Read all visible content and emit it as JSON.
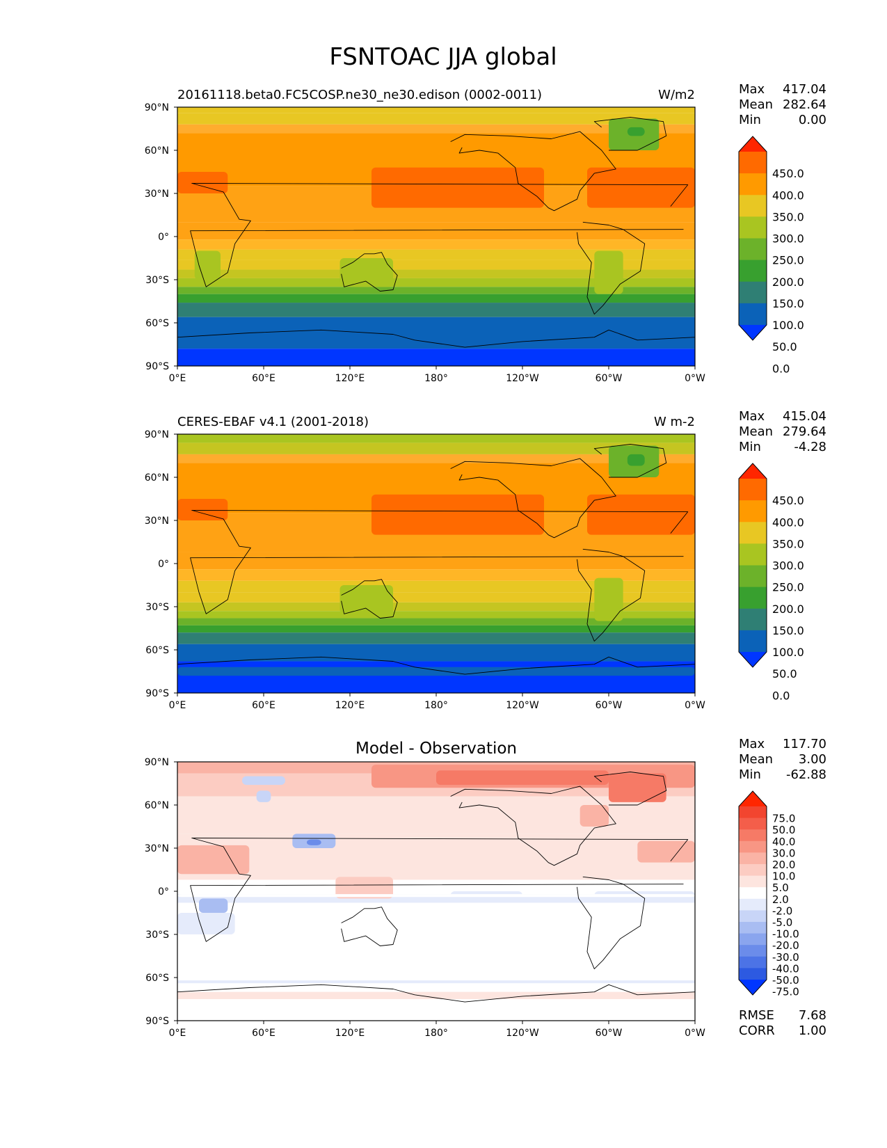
{
  "figure": {
    "title": "FSNTOAC JJA global"
  },
  "axes": {
    "x_ticks": [
      "0°E",
      "60°E",
      "120°E",
      "180°",
      "120°W",
      "60°W",
      "0°W"
    ],
    "y_ticks": [
      "90°N",
      "60°N",
      "30°N",
      "0°",
      "30°S",
      "60°S",
      "90°S"
    ]
  },
  "panels": [
    {
      "id": "model",
      "title_left": "20161118.beta0.FC5COSP.ne30_ne30.edison (0002-0011)",
      "title_center": "",
      "units": "W/m2",
      "stats": [
        {
          "label": "Max",
          "value": "417.04"
        },
        {
          "label": "Mean",
          "value": "282.64"
        },
        {
          "label": "Min",
          "value": "0.00"
        }
      ],
      "colorbar": {
        "labels": [
          "450.0",
          "400.0",
          "350.0",
          "300.0",
          "250.0",
          "200.0",
          "150.0",
          "100.0",
          "50.0",
          "0.0"
        ],
        "colors": [
          "#ff2600",
          "#ff6a00",
          "#ff9a00",
          "#e8c723",
          "#a9c521",
          "#6cb22a",
          "#38a02f",
          "#2f7f74",
          "#0b62b8",
          "#0036ff"
        ]
      },
      "bands": [
        {
          "lat_top": 90,
          "lat_bottom": 86,
          "color": "#e8c723"
        },
        {
          "lat_top": 86,
          "lat_bottom": 78,
          "color": "#e8c723"
        },
        {
          "lat_top": 78,
          "lat_bottom": 72,
          "color": "#ffac2e"
        },
        {
          "lat_top": 72,
          "lat_bottom": 35,
          "color": "#ff9a00"
        },
        {
          "lat_top": 35,
          "lat_bottom": 10,
          "color": "#ffa214"
        },
        {
          "lat_top": 10,
          "lat_bottom": -2,
          "color": "#ffa214"
        },
        {
          "lat_top": -2,
          "lat_bottom": -9,
          "color": "#ffb626"
        },
        {
          "lat_top": -9,
          "lat_bottom": -16,
          "color": "#e8c723"
        },
        {
          "lat_top": -16,
          "lat_bottom": -23,
          "color": "#e8c723"
        },
        {
          "lat_top": -23,
          "lat_bottom": -29,
          "color": "#c5c521"
        },
        {
          "lat_top": -29,
          "lat_bottom": -35,
          "color": "#a9c521"
        },
        {
          "lat_top": -35,
          "lat_bottom": -40,
          "color": "#6cb22a"
        },
        {
          "lat_top": -40,
          "lat_bottom": -46,
          "color": "#38a02f"
        },
        {
          "lat_top": -46,
          "lat_bottom": -56,
          "color": "#2f7f74"
        },
        {
          "lat_top": -56,
          "lat_bottom": -78,
          "color": "#0b62b8"
        },
        {
          "lat_top": -78,
          "lat_bottom": -90,
          "color": "#0036ff"
        }
      ],
      "patches": [
        {
          "lon0": 135,
          "lon1": 255,
          "lat0": 20,
          "lat1": 48,
          "color": "#ff6a00"
        },
        {
          "lon0": 285,
          "lon1": 360,
          "lat0": 20,
          "lat1": 48,
          "color": "#ff6a00"
        },
        {
          "lon0": 0,
          "lon1": 35,
          "lat0": 30,
          "lat1": 45,
          "color": "#ff6a00"
        },
        {
          "lon0": 300,
          "lon1": 335,
          "lat0": 60,
          "lat1": 82,
          "color": "#6cb22a"
        },
        {
          "lon0": 313,
          "lon1": 325,
          "lat0": 70,
          "lat1": 76,
          "color": "#38a02f"
        },
        {
          "lon0": 113,
          "lon1": 150,
          "lat0": -35,
          "lat1": -15,
          "color": "#a9c521"
        },
        {
          "lon0": 290,
          "lon1": 310,
          "lat0": -40,
          "lat1": -10,
          "color": "#a9c521"
        },
        {
          "lon0": 12,
          "lon1": 30,
          "lat0": -30,
          "lat1": -10,
          "color": "#a9c521"
        }
      ]
    },
    {
      "id": "obs",
      "title_left": "CERES-EBAF v4.1 (2001-2018)",
      "title_center": "",
      "units": "W m-2",
      "stats": [
        {
          "label": "Max",
          "value": "415.04"
        },
        {
          "label": "Mean",
          "value": "279.64"
        },
        {
          "label": "Min",
          "value": "-4.28"
        }
      ],
      "colorbar": {
        "labels": [
          "450.0",
          "400.0",
          "350.0",
          "300.0",
          "250.0",
          "200.0",
          "150.0",
          "100.0",
          "50.0",
          "0.0"
        ],
        "colors": [
          "#ff2600",
          "#ff6a00",
          "#ff9a00",
          "#e8c723",
          "#a9c521",
          "#6cb22a",
          "#38a02f",
          "#2f7f74",
          "#0b62b8",
          "#0036ff"
        ]
      },
      "bands": [
        {
          "lat_top": 90,
          "lat_bottom": 84,
          "color": "#a9c521"
        },
        {
          "lat_top": 84,
          "lat_bottom": 76,
          "color": "#c5c521"
        },
        {
          "lat_top": 76,
          "lat_bottom": 70,
          "color": "#ffac2e"
        },
        {
          "lat_top": 70,
          "lat_bottom": 35,
          "color": "#ff9a00"
        },
        {
          "lat_top": 35,
          "lat_bottom": 8,
          "color": "#ffa214"
        },
        {
          "lat_top": 8,
          "lat_bottom": -4,
          "color": "#ffa214"
        },
        {
          "lat_top": -4,
          "lat_bottom": -12,
          "color": "#ffb626"
        },
        {
          "lat_top": -12,
          "lat_bottom": -20,
          "color": "#e8c723"
        },
        {
          "lat_top": -20,
          "lat_bottom": -27,
          "color": "#e8c723"
        },
        {
          "lat_top": -27,
          "lat_bottom": -33,
          "color": "#c5c521"
        },
        {
          "lat_top": -33,
          "lat_bottom": -38,
          "color": "#a9c521"
        },
        {
          "lat_top": -38,
          "lat_bottom": -43,
          "color": "#6cb22a"
        },
        {
          "lat_top": -43,
          "lat_bottom": -48,
          "color": "#38a02f"
        },
        {
          "lat_top": -48,
          "lat_bottom": -56,
          "color": "#2f7f74"
        },
        {
          "lat_top": -56,
          "lat_bottom": -68,
          "color": "#0b62b8"
        },
        {
          "lat_top": -68,
          "lat_bottom": -90,
          "color": "#0036ff"
        }
      ],
      "patches": [
        {
          "lon0": 135,
          "lon1": 255,
          "lat0": 20,
          "lat1": 48,
          "color": "#ff6a00"
        },
        {
          "lon0": 285,
          "lon1": 360,
          "lat0": 20,
          "lat1": 48,
          "color": "#ff6a00"
        },
        {
          "lon0": 0,
          "lon1": 35,
          "lat0": 30,
          "lat1": 45,
          "color": "#ff6a00"
        },
        {
          "lon0": 300,
          "lon1": 335,
          "lat0": 60,
          "lat1": 82,
          "color": "#6cb22a"
        },
        {
          "lon0": 313,
          "lon1": 325,
          "lat0": 68,
          "lat1": 76,
          "color": "#38a02f"
        },
        {
          "lon0": 113,
          "lon1": 150,
          "lat0": -35,
          "lat1": -15,
          "color": "#a9c521"
        },
        {
          "lon0": 290,
          "lon1": 310,
          "lat0": -40,
          "lat1": -10,
          "color": "#a9c521"
        },
        {
          "lon0": 0,
          "lon1": 360,
          "lat0": -78,
          "lat1": -72,
          "color": "#0b62b8"
        }
      ]
    },
    {
      "id": "diff",
      "title_left": "",
      "title_center": "Model - Observation",
      "units": "",
      "stats": [
        {
          "label": "Max",
          "value": "117.70"
        },
        {
          "label": "Mean",
          "value": "3.00"
        },
        {
          "label": "Min",
          "value": "-62.88"
        }
      ],
      "colorbar": {
        "labels": [
          "75.0",
          "50.0",
          "40.0",
          "30.0",
          "20.0",
          "10.0",
          "5.0",
          "2.0",
          "-2.0",
          "-5.0",
          "-10.0",
          "-20.0",
          "-30.0",
          "-40.0",
          "-50.0",
          "-75.0"
        ],
        "colors": [
          "#ff2600",
          "#f2452f",
          "#f45e4a",
          "#f67a66",
          "#f89684",
          "#fab3a5",
          "#fcccc2",
          "#fde5df",
          "#ffffff",
          "#e5ebfb",
          "#c8d5f7",
          "#a9bdf2",
          "#8aa5ee",
          "#6b8cea",
          "#4c73e6",
          "#2d5ae1",
          "#0036ff"
        ]
      },
      "extra_stats": [
        {
          "label": "RMSE",
          "value": "7.68"
        },
        {
          "label": "CORR",
          "value": "1.00"
        }
      ],
      "bands": [
        {
          "lat_top": 90,
          "lat_bottom": 82,
          "color": "#fab3a5"
        },
        {
          "lat_top": 82,
          "lat_bottom": 66,
          "color": "#fcccc2"
        },
        {
          "lat_top": 66,
          "lat_bottom": 40,
          "color": "#fde5df"
        },
        {
          "lat_top": 40,
          "lat_bottom": 8,
          "color": "#fde5df"
        },
        {
          "lat_top": 8,
          "lat_bottom": -2,
          "color": "#ffffff"
        },
        {
          "lat_top": -2,
          "lat_bottom": -8,
          "color": "#e5ebfb"
        },
        {
          "lat_top": -8,
          "lat_bottom": -62,
          "color": "#ffffff"
        },
        {
          "lat_top": -62,
          "lat_bottom": -64,
          "color": "#e5ebfb"
        },
        {
          "lat_top": -64,
          "lat_bottom": -70,
          "color": "#ffffff"
        },
        {
          "lat_top": -70,
          "lat_bottom": -75,
          "color": "#fde5df"
        },
        {
          "lat_top": -75,
          "lat_bottom": -90,
          "color": "#ffffff"
        }
      ],
      "patches": [
        {
          "lon0": 135,
          "lon1": 360,
          "lat0": 72,
          "lat1": 88,
          "color": "#f89684"
        },
        {
          "lon0": 180,
          "lon1": 300,
          "lat0": 74,
          "lat1": 84,
          "color": "#f67a66"
        },
        {
          "lon0": 0,
          "lon1": 50,
          "lat0": 12,
          "lat1": 32,
          "color": "#fab3a5"
        },
        {
          "lon0": 55,
          "lon1": 65,
          "lat0": 62,
          "lat1": 70,
          "color": "#c8d5f7"
        },
        {
          "lon0": 45,
          "lon1": 75,
          "lat0": 74,
          "lat1": 80,
          "color": "#c8d5f7"
        },
        {
          "lon0": 80,
          "lon1": 110,
          "lat0": 30,
          "lat1": 40,
          "color": "#a9bdf2"
        },
        {
          "lon0": 90,
          "lon1": 100,
          "lat0": 32,
          "lat1": 36,
          "color": "#6b8cea"
        },
        {
          "lon0": 15,
          "lon1": 35,
          "lat0": -15,
          "lat1": -5,
          "color": "#a9bdf2"
        },
        {
          "lon0": 0,
          "lon1": 40,
          "lat0": -30,
          "lat1": -15,
          "color": "#e5ebfb"
        },
        {
          "lon0": 110,
          "lon1": 150,
          "lat0": -5,
          "lat1": 10,
          "color": "#fcccc2"
        },
        {
          "lon0": 300,
          "lon1": 340,
          "lat0": 62,
          "lat1": 82,
          "color": "#f67a66"
        },
        {
          "lon0": 280,
          "lon1": 300,
          "lat0": 45,
          "lat1": 60,
          "color": "#fab3a5"
        },
        {
          "lon0": 320,
          "lon1": 360,
          "lat0": 20,
          "lat1": 35,
          "color": "#fab3a5"
        },
        {
          "lon0": 290,
          "lon1": 360,
          "lat0": -8,
          "lat1": 0,
          "color": "#e5ebfb"
        },
        {
          "lon0": 190,
          "lon1": 240,
          "lat0": -6,
          "lat1": 0,
          "color": "#e5ebfb"
        },
        {
          "lon0": 0,
          "lon1": 360,
          "lat0": -4,
          "lat1": -2,
          "color": "#ffffff"
        }
      ]
    }
  ],
  "colors": {
    "axis": "#000000",
    "coast": "#000000"
  }
}
